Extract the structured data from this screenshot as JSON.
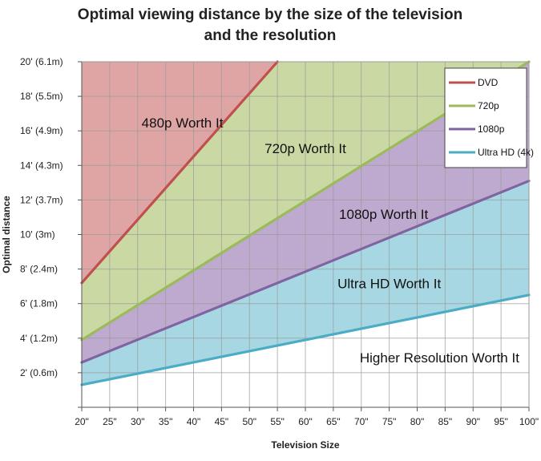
{
  "chart_data": {
    "type": "area",
    "title": "Optimal viewing distance by the size of the television and the resolution",
    "title_lines": [
      "Optimal viewing distance by the size of the television",
      "and the resolution"
    ],
    "xlabel": "Television Size",
    "ylabel": "Optimal distance",
    "xlim": [
      20,
      100
    ],
    "ylim": [
      0,
      20
    ],
    "grid": true,
    "legend_position": "top-right",
    "x_ticks": [
      {
        "value": 20,
        "label": "20\""
      },
      {
        "value": 25,
        "label": "25\""
      },
      {
        "value": 30,
        "label": "30\""
      },
      {
        "value": 35,
        "label": "35\""
      },
      {
        "value": 40,
        "label": "40\""
      },
      {
        "value": 45,
        "label": "45\""
      },
      {
        "value": 50,
        "label": "50\""
      },
      {
        "value": 55,
        "label": "55\""
      },
      {
        "value": 60,
        "label": "60\""
      },
      {
        "value": 65,
        "label": "65\""
      },
      {
        "value": 70,
        "label": "70\""
      },
      {
        "value": 75,
        "label": "75\""
      },
      {
        "value": 80,
        "label": "80\""
      },
      {
        "value": 85,
        "label": "85\""
      },
      {
        "value": 90,
        "label": "90\""
      },
      {
        "value": 95,
        "label": "95\""
      },
      {
        "value": 100,
        "label": "100\""
      }
    ],
    "y_ticks": [
      {
        "value": 2,
        "label": "2' (0.6m)"
      },
      {
        "value": 4,
        "label": "4' (1.2m)"
      },
      {
        "value": 6,
        "label": "6' (1.8m)"
      },
      {
        "value": 8,
        "label": "8' (2.4m)"
      },
      {
        "value": 10,
        "label": "10' (3m)"
      },
      {
        "value": 12,
        "label": "12' (3.7m)"
      },
      {
        "value": 14,
        "label": "14' (4.3m)"
      },
      {
        "value": 16,
        "label": "16' (4.9m)"
      },
      {
        "value": 18,
        "label": "18' (5.5m)"
      },
      {
        "value": 20,
        "label": "20' (6.1m)"
      }
    ],
    "series": [
      {
        "name": "DVD",
        "color": "#c0504d",
        "fill": "#dfa5a5",
        "x": [
          20,
          55
        ],
        "y": [
          7.2,
          20
        ]
      },
      {
        "name": "720p",
        "color": "#9bbb59",
        "fill": "#cad9a3",
        "x": [
          20,
          100
        ],
        "y": [
          3.9,
          20
        ]
      },
      {
        "name": "1080p",
        "color": "#8064a2",
        "fill": "#bea9cf",
        "x": [
          20,
          100
        ],
        "y": [
          2.6,
          13.1
        ]
      },
      {
        "name": "Ultra HD (4k)",
        "color": "#4bacc6",
        "fill": "#a6d7e2",
        "x": [
          20,
          100
        ],
        "y": [
          1.3,
          6.5
        ]
      }
    ],
    "region_labels": [
      {
        "text": "480p Worth It",
        "x": 38,
        "y": 16.2
      },
      {
        "text": "720p Worth It",
        "x": 60,
        "y": 14.7
      },
      {
        "text": "1080p Worth It",
        "x": 74,
        "y": 10.9
      },
      {
        "text": "Ultra HD Worth It",
        "x": 75,
        "y": 6.9
      },
      {
        "text": "Higher Resolution Worth It",
        "x": 84,
        "y": 2.6
      }
    ]
  }
}
